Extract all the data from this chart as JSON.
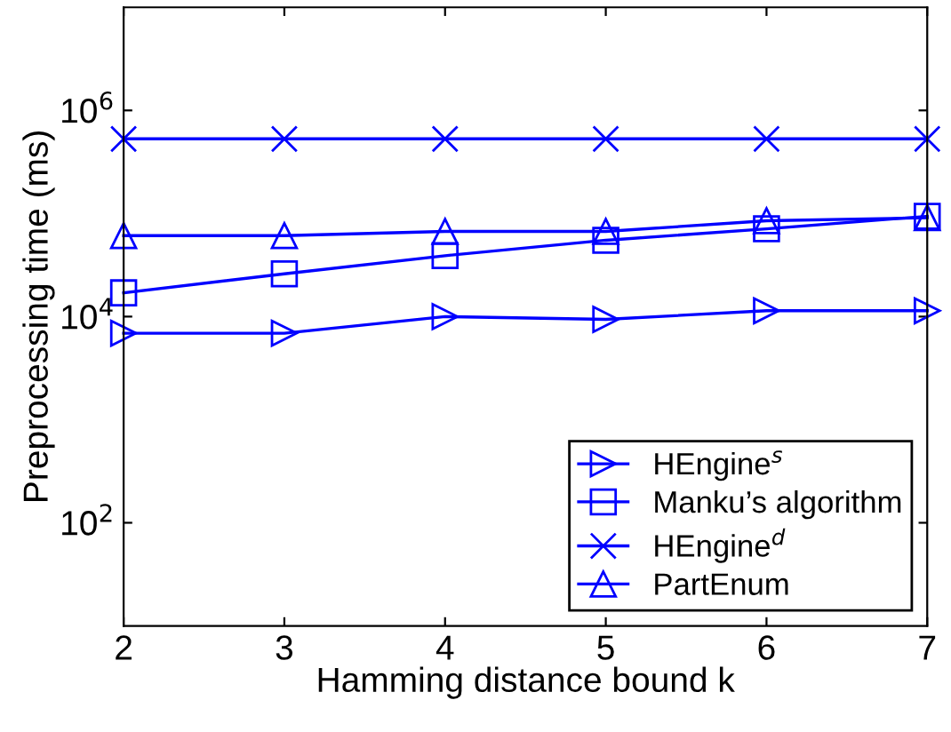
{
  "chart_data": {
    "type": "line",
    "xlabel": "Hamming distance bound k",
    "ylabel": "Preprocessing time (ms)",
    "x": [
      2,
      3,
      4,
      5,
      6,
      7
    ],
    "series": [
      {
        "name": "HEngine$^{s}$",
        "color": "#0000ff",
        "marker": "triangle_right",
        "values": [
          6900,
          6900,
          10000,
          9400,
          11400,
          11400
        ]
      },
      {
        "name": "Manku’s algorithm",
        "color": "#0000ff",
        "marker": "square",
        "values": [
          17000,
          26000,
          39000,
          55000,
          71000,
          94000
        ]
      },
      {
        "name": "HEngine$^{d}$",
        "color": "#0000ff",
        "marker": "cross",
        "values": [
          530000,
          530000,
          530000,
          530000,
          530000,
          530000
        ]
      },
      {
        "name": "PartEnum",
        "color": "#0000ff",
        "marker": "triangle",
        "values": [
          61000,
          61000,
          67000,
          67000,
          85000,
          91000
        ]
      }
    ],
    "log": "y",
    "xlim": [
      2,
      7
    ],
    "xticks": [
      2,
      3,
      4,
      5,
      6,
      7
    ],
    "ylim": [
      10,
      10000000
    ],
    "yticks": [
      {
        "value": 100,
        "label": "10$^{2}$"
      },
      {
        "value": 10000,
        "label": "10$^{4}$"
      },
      {
        "value": 1000000,
        "label": "10$^{6}$"
      }
    ],
    "grid": false,
    "legend": "bottom right",
    "line_style": "solid"
  }
}
